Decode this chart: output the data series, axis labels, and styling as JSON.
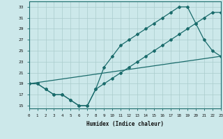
{
  "xlabel": "Humidex (Indice chaleur)",
  "bg_color": "#cce8ea",
  "grid_color": "#aacccc",
  "line_color": "#1a6b6b",
  "line1_x": [
    0,
    1,
    2,
    3,
    4,
    5,
    6,
    7,
    8,
    9,
    10,
    11,
    12,
    13,
    14,
    15,
    16,
    17,
    18,
    19,
    20,
    21,
    22,
    23
  ],
  "line1_y": [
    19,
    19,
    18,
    17,
    17,
    16,
    15,
    15,
    18,
    22,
    24,
    26,
    27,
    28,
    29,
    30,
    31,
    32,
    33,
    33,
    30,
    27,
    25,
    24
  ],
  "line2_x": [
    0,
    1,
    2,
    3,
    4,
    5,
    6,
    7,
    8,
    9,
    10,
    11,
    12,
    13,
    14,
    15,
    16,
    17,
    18,
    19,
    20,
    21,
    22,
    23
  ],
  "line2_y": [
    19,
    19,
    18,
    17,
    17,
    16,
    15,
    15,
    18,
    19,
    20,
    21,
    22,
    23,
    24,
    25,
    26,
    27,
    28,
    29,
    30,
    31,
    32,
    32
  ],
  "line3_x": [
    0,
    23
  ],
  "line3_y": [
    19,
    24
  ],
  "xlim": [
    0,
    23
  ],
  "ylim": [
    14.5,
    34
  ],
  "yticks": [
    15,
    17,
    19,
    21,
    23,
    25,
    27,
    29,
    31,
    33
  ],
  "xticks": [
    0,
    1,
    2,
    3,
    4,
    5,
    6,
    7,
    8,
    9,
    10,
    11,
    12,
    13,
    14,
    15,
    16,
    17,
    18,
    19,
    20,
    21,
    22,
    23
  ]
}
